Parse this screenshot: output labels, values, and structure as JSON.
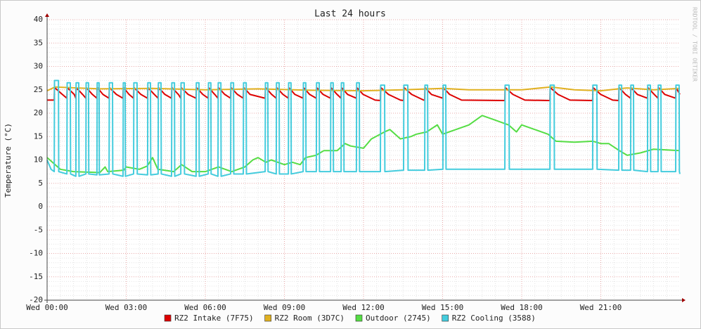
{
  "chart_data": {
    "type": "line",
    "title": "Last 24 hours",
    "y_label": "Temperature (°C)",
    "watermark": "RRDTOOL / TOBI OETIKER",
    "xlim": [
      0,
      24
    ],
    "xticks": [
      {
        "value": 0,
        "label": "Wed 00:00"
      },
      {
        "value": 3,
        "label": "Wed 03:00"
      },
      {
        "value": 6,
        "label": "Wed 06:00"
      },
      {
        "value": 9,
        "label": "Wed 09:00"
      },
      {
        "value": 12,
        "label": "Wed 12:00"
      },
      {
        "value": 15,
        "label": "Wed 15:00"
      },
      {
        "value": 18,
        "label": "Wed 18:00"
      },
      {
        "value": 21,
        "label": "Wed 21:00"
      }
    ],
    "ylim": [
      -20,
      40
    ],
    "yticks": [
      -20,
      -15,
      -10,
      -5,
      0,
      5,
      10,
      15,
      20,
      25,
      30,
      35,
      40
    ],
    "grid": true,
    "minor_grid": {
      "x": 0.5,
      "y": 1
    },
    "legend": "bottom",
    "series": [
      {
        "name": "RZ2 Intake (7F75)",
        "color": "#dd0000",
        "x": [
          0,
          0.27,
          0.28,
          0.58,
          0.75,
          0.76,
          1.03,
          1.09,
          1.1,
          1.35,
          1.47,
          1.48,
          1.72,
          1.89,
          1.9,
          2.12,
          2.35,
          2.36,
          2.63,
          2.88,
          2.89,
          3.11,
          3.28,
          3.29,
          3.56,
          3.81,
          3.82,
          4.07,
          4.21,
          4.22,
          4.47,
          4.72,
          4.73,
          4.98,
          5.07,
          5.08,
          5.35,
          5.65,
          5.66,
          5.91,
          6.11,
          6.12,
          6.36,
          6.48,
          6.49,
          6.74,
          6.96,
          6.97,
          7.22,
          7.44,
          7.45,
          7.7,
          8.27,
          8.28,
          8.52,
          8.69,
          8.7,
          8.95,
          9.15,
          9.16,
          9.4,
          9.71,
          9.72,
          9.96,
          10.21,
          10.22,
          10.47,
          10.75,
          10.76,
          11.0,
          11.15,
          11.16,
          11.4,
          11.73,
          11.74,
          11.99,
          12.44,
          12.64,
          12.65,
          12.95,
          13.4,
          13.52,
          13.53,
          13.83,
          14.28,
          14.32,
          14.33,
          14.58,
          15.01,
          15.02,
          15.27,
          15.72,
          17.36,
          17.37,
          17.67,
          18.12,
          19.07,
          19.08,
          19.38,
          19.83,
          20.69,
          20.7,
          21.0,
          21.45,
          21.68,
          21.69,
          21.94,
          22.13,
          22.14,
          22.39,
          22.77,
          22.78,
          23.03,
          23.17,
          23.18,
          23.43,
          23.84,
          23.85,
          24
        ],
        "values": [
          22.8,
          22.8,
          25.5,
          24,
          23.2,
          25.5,
          24,
          23.2,
          25.5,
          24,
          23.2,
          25.5,
          24,
          23.2,
          25.5,
          24,
          23.2,
          25.5,
          24,
          23.2,
          25.5,
          24,
          23.2,
          25.5,
          24,
          23.2,
          25.5,
          24,
          23.2,
          25.5,
          24,
          23.2,
          25.5,
          24,
          23.2,
          25.5,
          24,
          23.2,
          25.5,
          24,
          23.2,
          25.5,
          24,
          23.2,
          25.5,
          24,
          23.2,
          25.5,
          24,
          23.2,
          25.5,
          24,
          23.2,
          25.5,
          24,
          23.2,
          25.5,
          24,
          23.2,
          25.5,
          24,
          23.2,
          25.5,
          24,
          23.2,
          25.5,
          24,
          23.2,
          25.5,
          24,
          23.2,
          25.5,
          24,
          23.2,
          25.5,
          24,
          22.8,
          22.7,
          25.5,
          24,
          22.8,
          22.7,
          25.5,
          24,
          22.8,
          22.8,
          25.5,
          24,
          23.2,
          25.5,
          24,
          22.8,
          22.7,
          25.5,
          24,
          22.8,
          22.7,
          25.5,
          24,
          22.8,
          22.7,
          25.5,
          24,
          22.8,
          22.7,
          25.5,
          24,
          23.2,
          25.5,
          24,
          23.2,
          25.5,
          24,
          23.2,
          25.5,
          24,
          23.2,
          25.5,
          24
        ]
      },
      {
        "name": "RZ2 Room (3D7C)",
        "color": "#e0b020",
        "x": [
          0,
          0.3,
          2,
          4,
          6,
          8,
          10,
          12,
          13.5,
          15,
          16,
          18,
          19.1,
          20,
          21,
          22,
          23,
          24
        ],
        "values": [
          24.8,
          25.6,
          25.2,
          25.3,
          25,
          25.2,
          24.9,
          24.8,
          25,
          25.3,
          25,
          25,
          25.6,
          25,
          24.8,
          25.4,
          25,
          25.3
        ]
      },
      {
        "name": "Outdoor (2745)",
        "color": "#55dd44",
        "x": [
          0,
          0.5,
          1,
          2,
          2.2,
          2.3,
          2.9,
          3,
          3.5,
          3.8,
          4,
          4.2,
          4.8,
          5.1,
          5.5,
          6,
          6.5,
          7,
          7.5,
          7.8,
          8,
          8.3,
          8.5,
          9,
          9.3,
          9.6,
          9.8,
          10.2,
          10.5,
          11,
          11.3,
          11.5,
          12,
          12.3,
          12.8,
          13,
          13.4,
          13.8,
          14,
          14.4,
          14.8,
          15,
          15.5,
          16,
          16.5,
          17,
          17.5,
          17.8,
          18,
          18.5,
          19,
          19.3,
          20,
          20.7,
          21,
          21.3,
          21.7,
          22,
          22.5,
          23,
          24
        ],
        "values": [
          10.5,
          8,
          7.5,
          7.3,
          8.5,
          7.5,
          7.8,
          8.5,
          8,
          8.7,
          10.5,
          8,
          7.5,
          9,
          7.5,
          7.5,
          8.5,
          7.5,
          8.5,
          10,
          10.5,
          9.5,
          10,
          9,
          9.5,
          9,
          10.5,
          11,
          12,
          12,
          13.5,
          13,
          12.5,
          14.5,
          16,
          16.5,
          14.5,
          15,
          15.5,
          16,
          17.5,
          15.5,
          16.5,
          17.5,
          19.5,
          18.5,
          17.5,
          16,
          17.5,
          16.5,
          15.5,
          14,
          13.8,
          14,
          13.5,
          13.5,
          12,
          11,
          11.5,
          12.3,
          12
        ]
      },
      {
        "name": "RZ2 Cooling (3588)",
        "color": "#44ccdd",
        "x": [
          0,
          0.15,
          0.27,
          0.28,
          0.43,
          0.44,
          0.75,
          0.76,
          0.88,
          0.89,
          1.09,
          1.1,
          1.2,
          1.21,
          1.47,
          1.48,
          1.57,
          1.58,
          1.89,
          1.9,
          1.97,
          1.98,
          2.35,
          2.36,
          2.48,
          2.49,
          2.88,
          2.89,
          2.96,
          2.97,
          3.28,
          3.29,
          3.41,
          3.42,
          3.81,
          3.82,
          3.92,
          3.93,
          4.21,
          4.22,
          4.32,
          4.33,
          4.72,
          4.73,
          4.83,
          4.84,
          5.07,
          5.08,
          5.2,
          5.21,
          5.65,
          5.66,
          5.76,
          5.77,
          6.11,
          6.12,
          6.21,
          6.22,
          6.48,
          6.49,
          6.59,
          6.6,
          6.96,
          6.97,
          7.07,
          7.08,
          7.44,
          7.45,
          7.55,
          7.56,
          8.27,
          8.28,
          8.37,
          8.38,
          8.69,
          8.7,
          8.8,
          8.81,
          9.15,
          9.16,
          9.25,
          9.26,
          9.71,
          9.72,
          9.81,
          9.82,
          10.21,
          10.22,
          10.32,
          10.33,
          10.75,
          10.76,
          10.85,
          10.86,
          11.15,
          11.16,
          11.25,
          11.26,
          11.73,
          11.74,
          11.84,
          11.85,
          12.64,
          12.65,
          12.8,
          12.81,
          13.52,
          13.53,
          13.68,
          13.69,
          14.32,
          14.33,
          14.43,
          14.44,
          15.01,
          15.02,
          15.12,
          15.13,
          17.36,
          17.37,
          17.52,
          17.53,
          19.07,
          19.08,
          19.23,
          19.24,
          20.69,
          20.7,
          20.85,
          20.86,
          21.68,
          21.69,
          21.79,
          21.8,
          22.13,
          22.14,
          22.24,
          22.25,
          22.77,
          22.78,
          22.88,
          22.89,
          23.17,
          23.18,
          23.28,
          23.29,
          23.84,
          23.85,
          23.97,
          23.98,
          24
        ],
        "values": [
          10,
          8,
          7.5,
          27,
          27,
          7.5,
          7,
          26.5,
          26.5,
          7,
          6.5,
          26.5,
          26.5,
          6.5,
          7,
          26.5,
          26.5,
          7,
          6.8,
          26.5,
          26.5,
          6.8,
          7,
          26.5,
          26.5,
          7,
          6.5,
          26.5,
          26.5,
          6.5,
          7,
          26.5,
          26.5,
          7,
          6.8,
          26.5,
          26.5,
          6.8,
          7,
          26.5,
          26.5,
          7,
          6.5,
          26.5,
          26.5,
          6.5,
          7,
          26.5,
          26.5,
          7,
          6.5,
          26.5,
          26.5,
          6.5,
          7,
          26.5,
          26.5,
          7,
          6.5,
          26.5,
          26.5,
          6.5,
          7,
          26.5,
          26.5,
          7,
          7,
          26.5,
          26.5,
          7,
          7.5,
          26.5,
          26.5,
          7.5,
          7,
          26.5,
          26.5,
          7,
          7,
          26.5,
          26.5,
          7,
          7.5,
          26.5,
          26.5,
          7.5,
          7.5,
          26.5,
          26.5,
          7.5,
          7.5,
          26.5,
          26.5,
          7.5,
          7.5,
          26.5,
          26.5,
          7.5,
          7.5,
          26.5,
          26.5,
          7.5,
          7.5,
          26,
          26,
          7.5,
          7.8,
          26,
          26,
          7.8,
          7.8,
          26,
          26,
          7.8,
          8,
          26,
          26,
          8,
          8,
          26,
          26,
          8,
          8,
          26,
          26,
          8,
          8,
          26,
          26,
          8,
          7.8,
          26,
          26,
          7.8,
          7.8,
          26,
          26,
          7.8,
          7.5,
          26,
          26,
          7.5,
          7.5,
          26,
          26,
          7.5,
          7.5,
          26,
          26,
          7.5,
          7
        ]
      }
    ]
  }
}
